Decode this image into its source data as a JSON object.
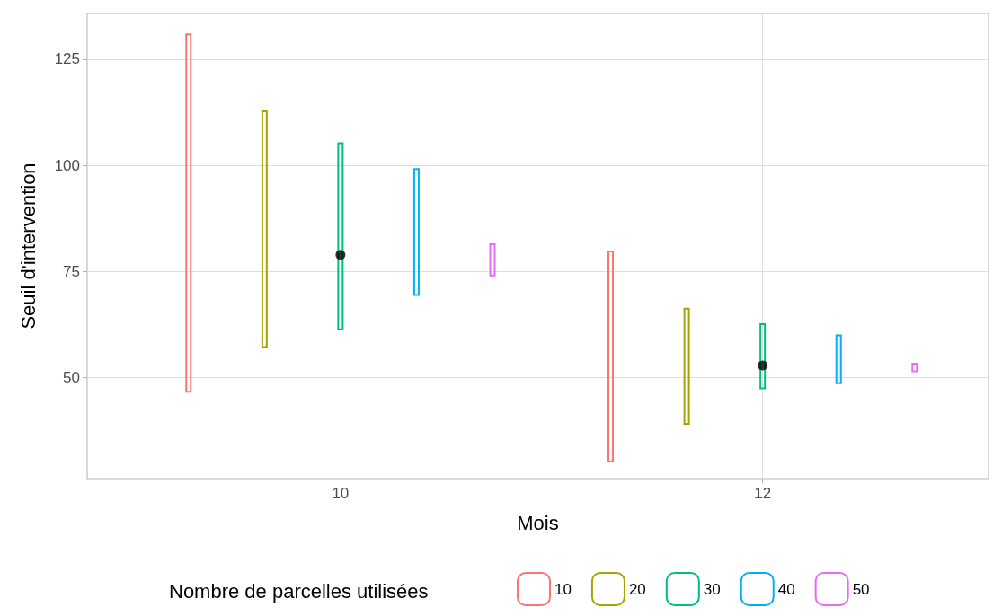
{
  "chart_data": {
    "type": "bar",
    "xlabel": "Mois",
    "ylabel": "Seuil d'intervention",
    "legend_title": "Nombre de parcelles utilisées",
    "xlim": [
      8.8,
      13.07
    ],
    "xticks": [
      10,
      12
    ],
    "ylim": [
      26.1,
      135.8
    ],
    "yticks": [
      50,
      75,
      100,
      125
    ],
    "grid": true,
    "legend": "bottom",
    "series": [
      {
        "name": "10",
        "color": "#f8766d",
        "x": [
          9.28,
          11.28
        ],
        "base": [
          46.6,
          30.2
        ],
        "values": [
          84.3,
          49.5
        ]
      },
      {
        "name": "20",
        "color": "#a3a500",
        "x": [
          9.64,
          11.64
        ],
        "base": [
          57.1,
          39.0
        ],
        "values": [
          55.6,
          27.2
        ]
      },
      {
        "name": "30",
        "color": "#00bf7d",
        "x": [
          10,
          12
        ],
        "base": [
          61.3,
          47.4
        ],
        "values": [
          43.9,
          15.1
        ]
      },
      {
        "name": "40",
        "color": "#00b0f6",
        "x": [
          10.36,
          12.36
        ],
        "base": [
          69.4,
          48.6
        ],
        "values": [
          29.7,
          11.3
        ]
      },
      {
        "name": "50",
        "color": "#e76bf3",
        "x": [
          10.72,
          12.72
        ],
        "base": [
          74.0,
          51.4
        ],
        "values": [
          7.4,
          1.8
        ]
      },
      {
        "type": "scatter",
        "color": "#000000",
        "x": [
          10,
          12
        ],
        "values": [
          78.9,
          52.8
        ],
        "marker": "circle"
      }
    ]
  }
}
